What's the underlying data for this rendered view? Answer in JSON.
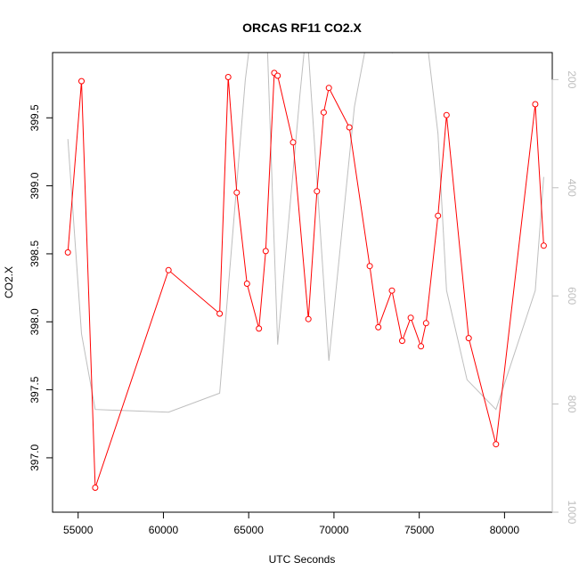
{
  "chart_data": {
    "type": "line",
    "title": "ORCAS RF11 CO2.X",
    "xlabel": "UTC Seconds",
    "ylabel": "CO2.X",
    "xlim": [
      53500,
      82800
    ],
    "ylim": [
      396.6,
      399.98
    ],
    "x_ticks": [
      55000,
      60000,
      65000,
      70000,
      75000,
      80000
    ],
    "y_ticks": [
      397.0,
      397.5,
      398.0,
      398.5,
      399.0,
      399.5
    ],
    "y_tick_labels": [
      "397.0",
      "397.5",
      "398.0",
      "398.5",
      "399.0",
      "399.5"
    ],
    "y2_range": [
      1000,
      150
    ],
    "y2_ticks": [
      200,
      400,
      600,
      800,
      1000
    ],
    "grid": false,
    "legend": "none",
    "series": [
      {
        "color": "#ff0000",
        "style": "line-with-open-circles",
        "axis": "left",
        "x": [
          54400,
          55200,
          56000,
          60300,
          63300,
          63800,
          64300,
          64900,
          65600,
          66000,
          66500,
          66700,
          67600,
          68500,
          69000,
          69400,
          69700,
          70900,
          72100,
          72600,
          73400,
          74000,
          74500,
          75100,
          75400,
          76100,
          76600,
          77900,
          79500,
          81800,
          82300
        ],
        "y": [
          398.51,
          399.77,
          396.78,
          398.38,
          398.06,
          399.8,
          398.95,
          398.28,
          397.95,
          398.52,
          399.83,
          399.81,
          399.32,
          398.02,
          398.96,
          399.54,
          399.72,
          399.43,
          398.41,
          397.96,
          398.23,
          397.86,
          398.03,
          397.82,
          397.99,
          398.78,
          399.52,
          397.88,
          397.1,
          399.6,
          398.56
        ]
      },
      {
        "color": "#bebebe",
        "style": "line",
        "axis": "right",
        "x": [
          54400,
          55200,
          56000,
          60300,
          63300,
          64800,
          65400,
          66000,
          66700,
          68000,
          68400,
          69700,
          71200,
          72100,
          73400,
          73500,
          74500,
          74600,
          75100,
          75500,
          76100,
          76600,
          77800,
          79500,
          81800,
          82300
        ],
        "y": [
          310,
          670,
          810,
          815,
          780,
          200,
          50,
          50,
          690,
          230,
          100,
          720,
          250,
          100,
          150,
          120,
          140,
          110,
          100,
          140,
          300,
          590,
          755,
          810,
          590,
          380
        ]
      }
    ]
  }
}
